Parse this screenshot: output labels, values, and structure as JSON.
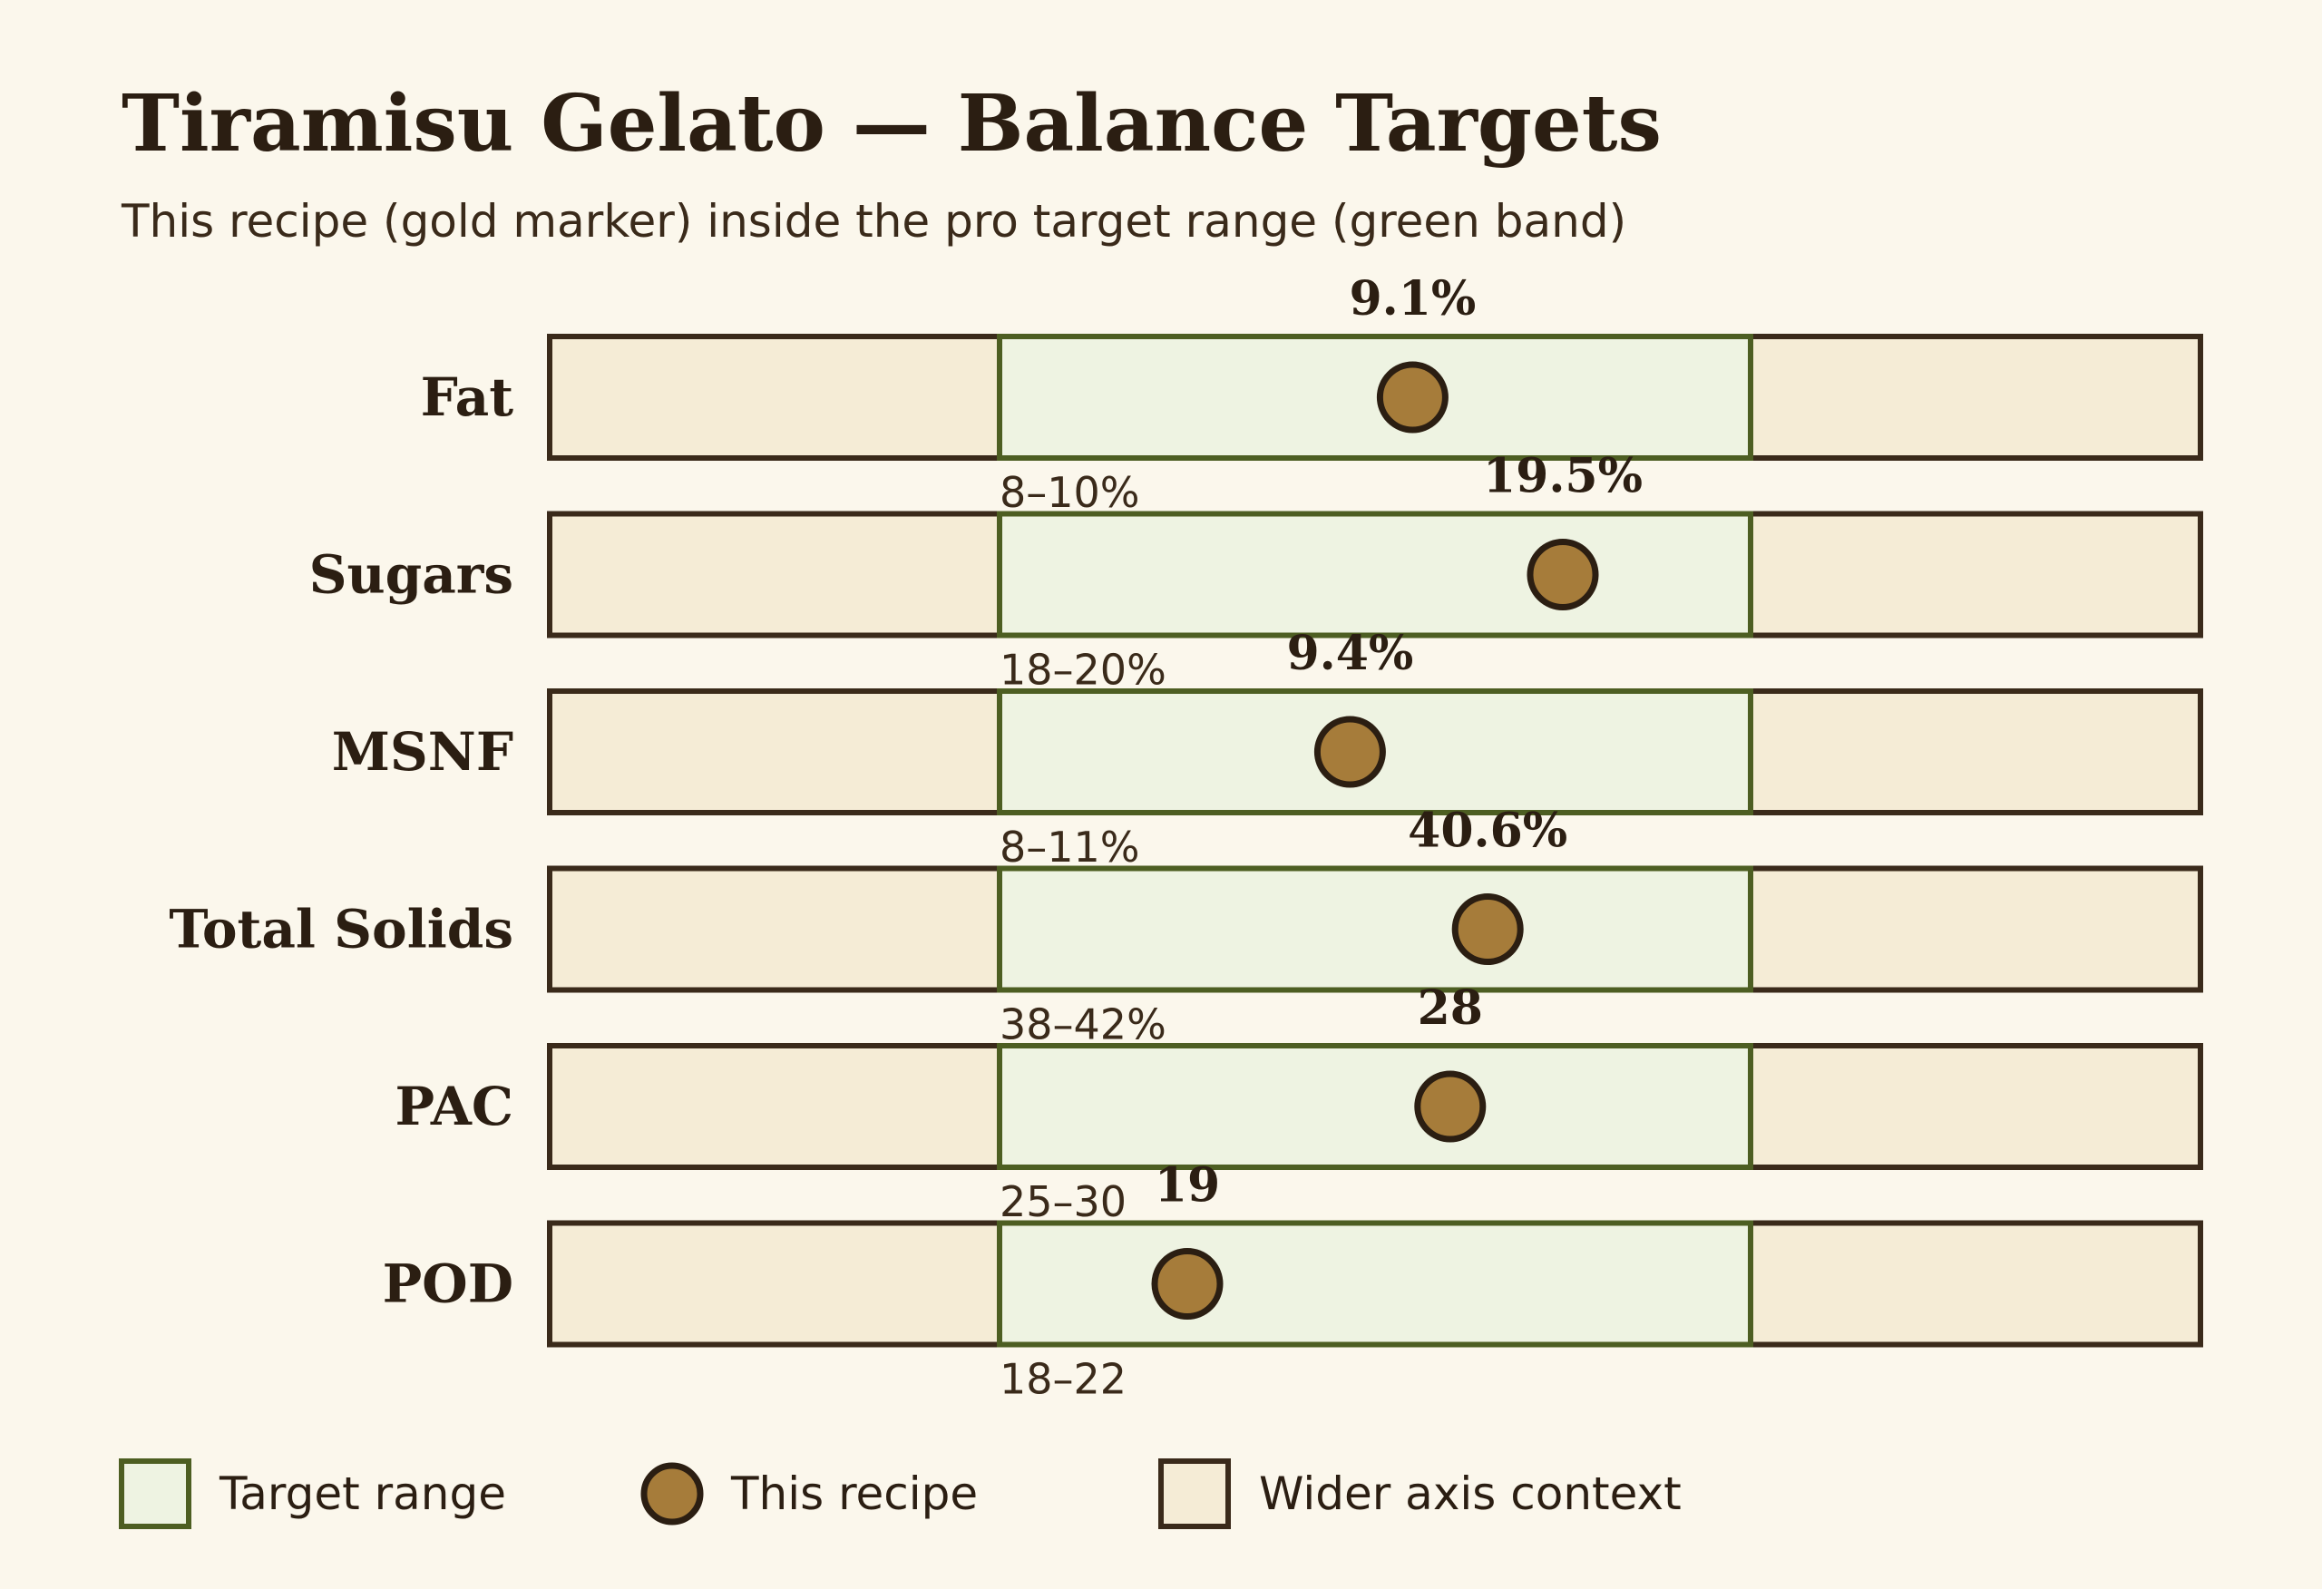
{
  "chart_data": {
    "type": "bullet",
    "title": "Tiramisu Gelato — Balance Targets",
    "subtitle": "This recipe (gold marker) inside the pro target range (green band)",
    "rows": [
      {
        "label": "Fat",
        "value": 9.1,
        "value_label": "9.1%",
        "target": [
          8,
          10
        ],
        "range_label": "8–10%"
      },
      {
        "label": "Sugars",
        "value": 19.5,
        "value_label": "19.5%",
        "target": [
          18,
          20
        ],
        "range_label": "18–20%"
      },
      {
        "label": "MSNF",
        "value": 9.4,
        "value_label": "9.4%",
        "target": [
          8,
          11
        ],
        "range_label": "8–11%"
      },
      {
        "label": "Total Solids",
        "value": 40.6,
        "value_label": "40.6%",
        "target": [
          38,
          42
        ],
        "range_label": "38–42%"
      },
      {
        "label": "PAC",
        "value": 28,
        "value_label": "28",
        "target": [
          25,
          30
        ],
        "range_label": "25–30"
      },
      {
        "label": "POD",
        "value": 19,
        "value_label": "19",
        "target": [
          18,
          22
        ],
        "range_label": "18–22"
      }
    ],
    "legend": [
      {
        "key": "target",
        "label": "Target range"
      },
      {
        "key": "recipe",
        "label": "This recipe"
      },
      {
        "key": "context",
        "label": "Wider axis context"
      }
    ],
    "legend_position": "bottom-left",
    "colors": {
      "background": "#fbf7ec",
      "context_fill": "#f5ecd6",
      "target_fill": "#eef3e2",
      "target_stroke": "#4d5e22",
      "marker_fill": "#a67c3a",
      "outline": "#3a2a1a"
    }
  }
}
